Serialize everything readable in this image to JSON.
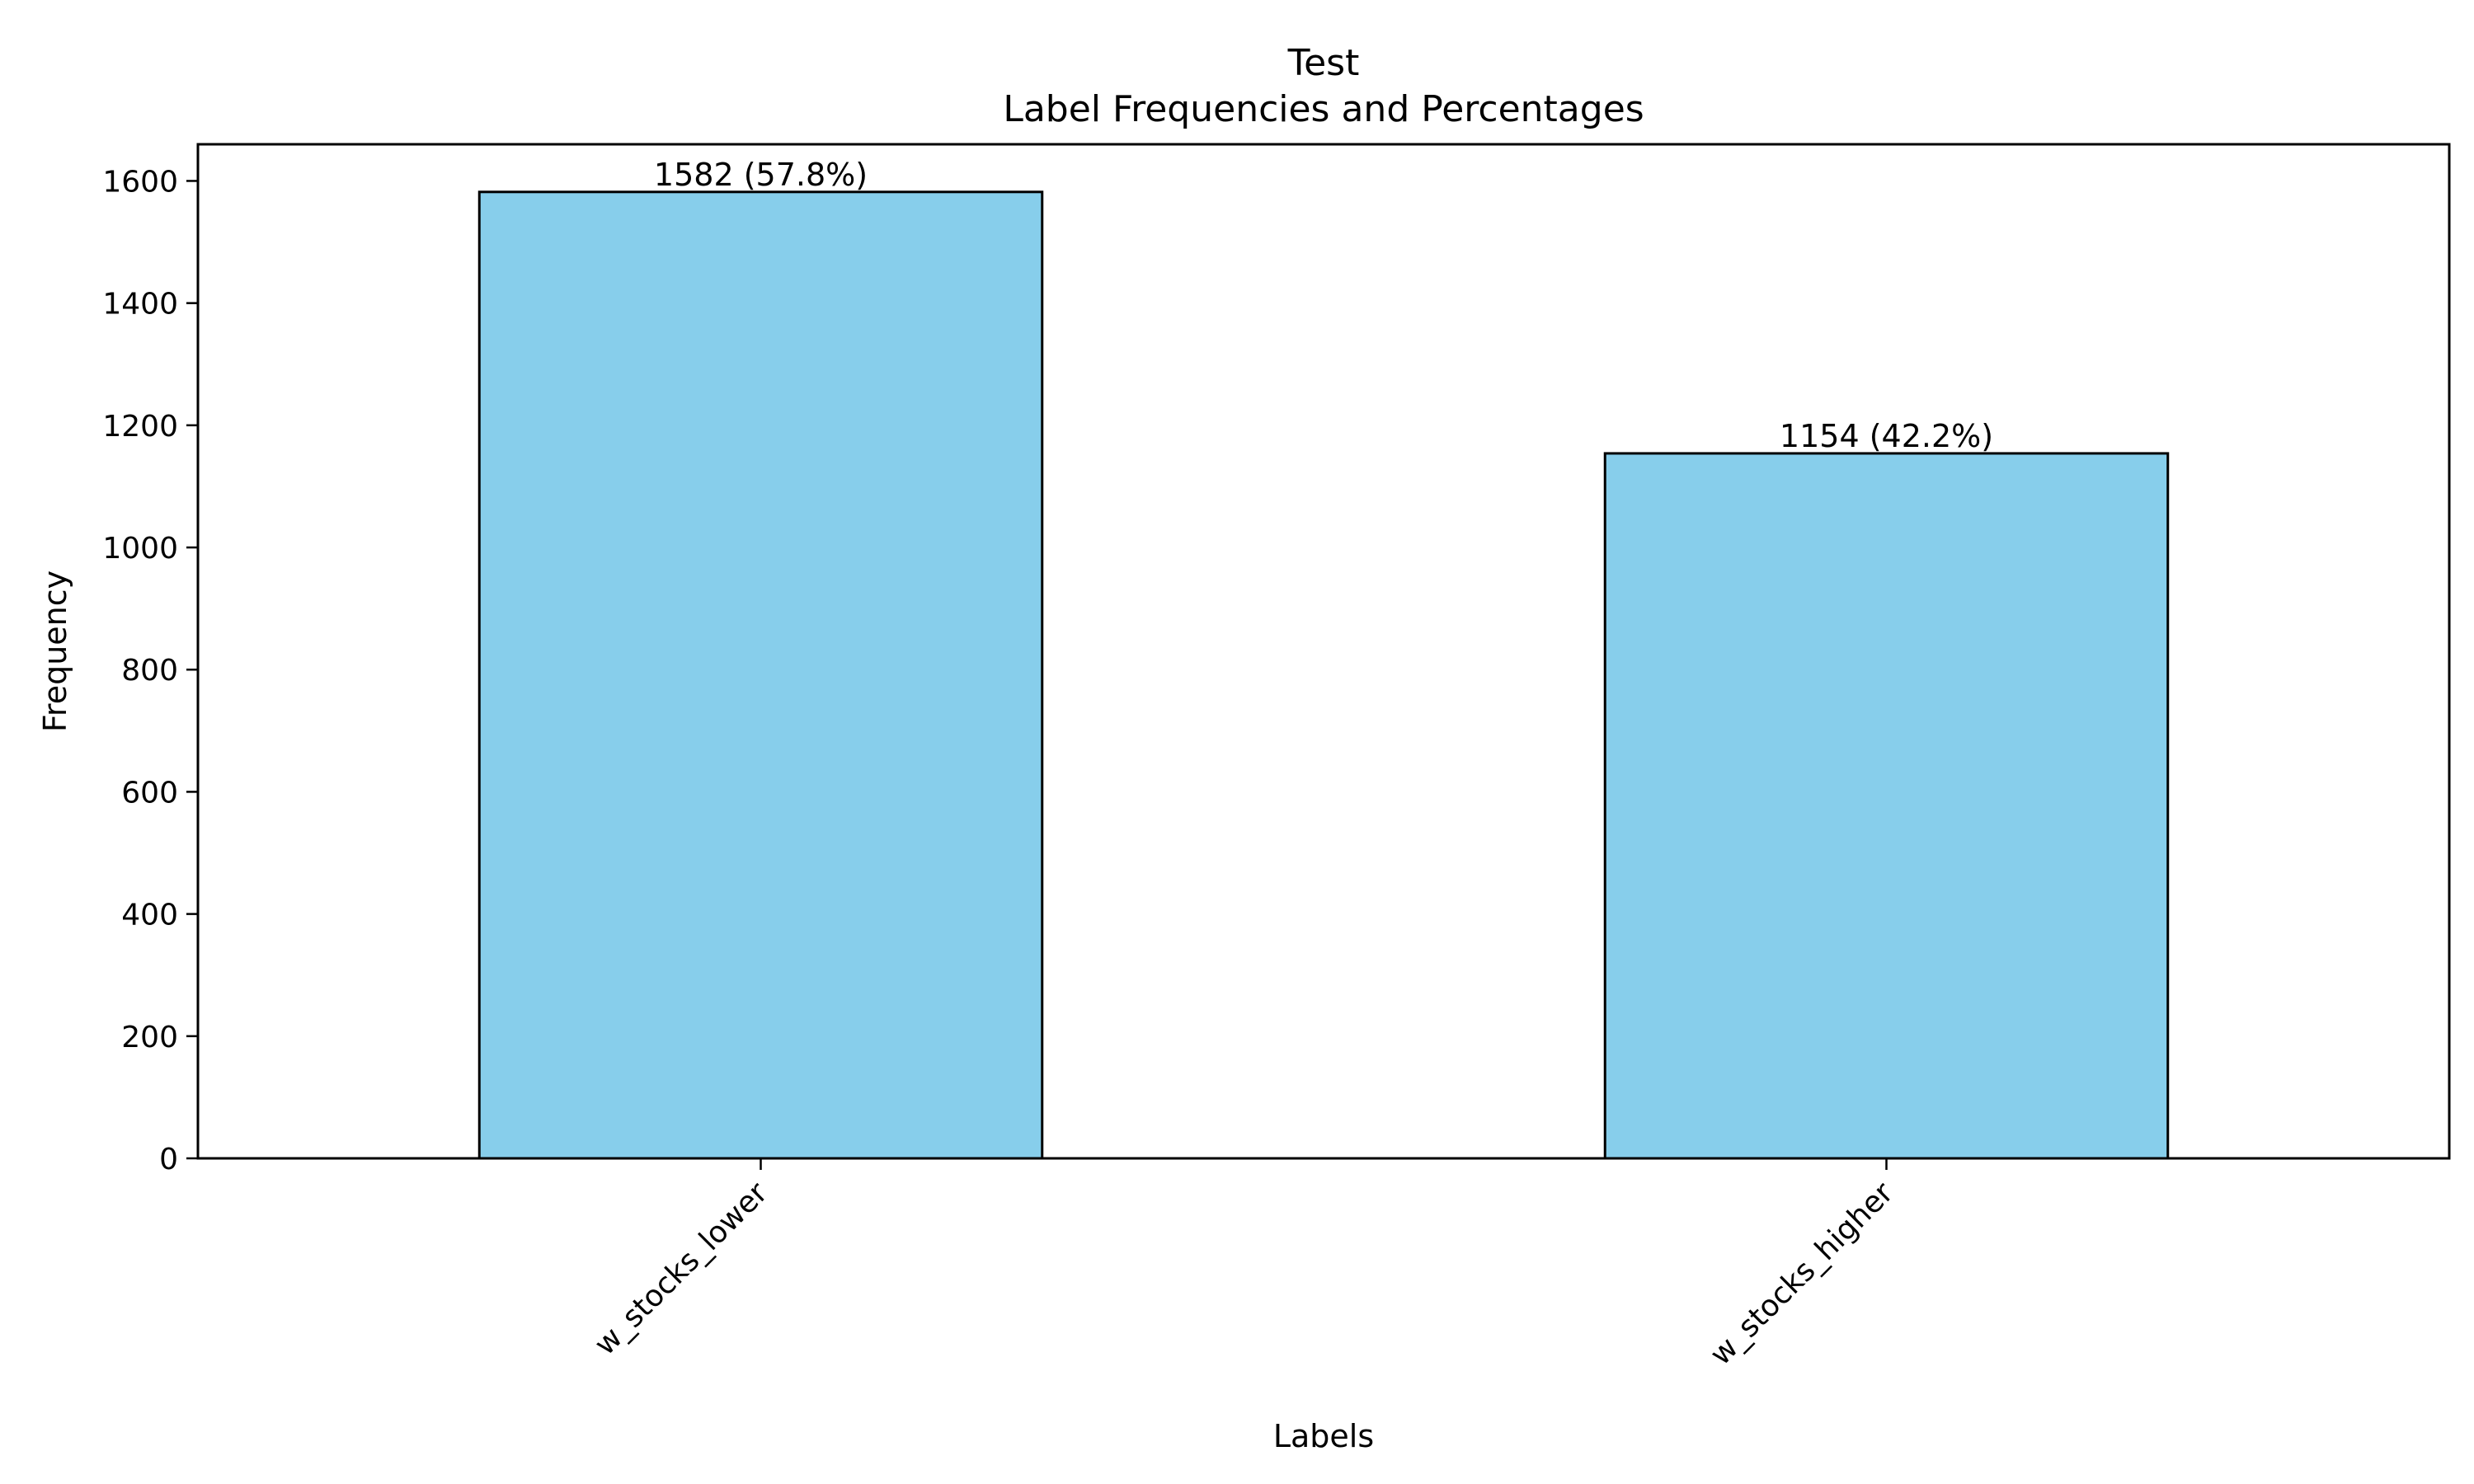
{
  "chart_data": {
    "type": "bar",
    "title": "Test",
    "subtitle": "Label Frequencies and Percentages",
    "xlabel": "Labels",
    "ylabel": "Frequency",
    "categories": [
      "w_stocks_lower",
      "w_stocks_higher"
    ],
    "values": [
      1582,
      1154
    ],
    "data_labels": [
      "1582 (57.8%)",
      "1154 (42.2%)"
    ],
    "ylim": [
      0,
      1660
    ],
    "yticks": [
      0,
      200,
      400,
      600,
      800,
      1000,
      1200,
      1400,
      1600
    ],
    "grid": false,
    "legend": "none",
    "bar_color": "#87CEEB",
    "edge_color": "#000000"
  }
}
